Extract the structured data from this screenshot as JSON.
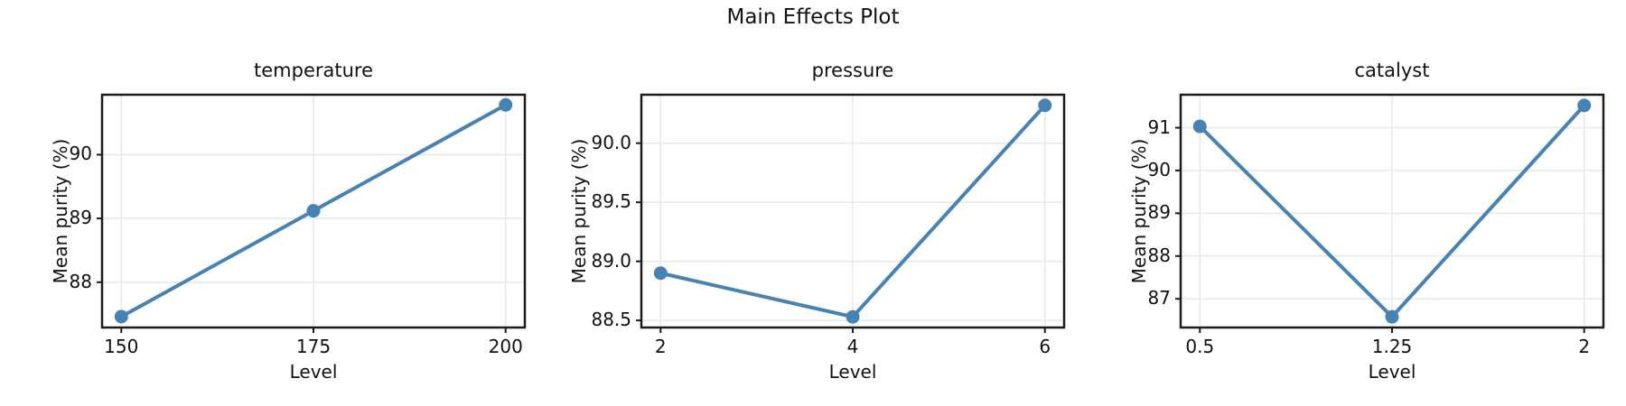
{
  "figure": {
    "title": "Main Effects Plot",
    "background_color": "#ffffff",
    "line_color": "#4682b4",
    "grid_color": "#e8e8e8",
    "spine_color": "#1c1c1c",
    "text_color": "#111111"
  },
  "chart_data": [
    {
      "type": "line",
      "title": "temperature",
      "xlabel": "Level",
      "ylabel": "Mean purity (%)",
      "x": [
        150,
        175,
        200
      ],
      "values": [
        87.46,
        89.12,
        90.78
      ],
      "xtick_labels": [
        "150",
        "175",
        "200"
      ],
      "yticks": [
        88,
        89,
        90
      ],
      "ytick_labels": [
        "88",
        "89",
        "90"
      ],
      "xlim": [
        147.5,
        202.5
      ],
      "ylim": [
        87.29,
        90.94
      ],
      "grid": true,
      "legend": null
    },
    {
      "type": "line",
      "title": "pressure",
      "xlabel": "Level",
      "ylabel": "Mean purity (%)",
      "x": [
        2,
        4,
        6
      ],
      "values": [
        88.9,
        88.53,
        90.32
      ],
      "xtick_labels": [
        "2",
        "4",
        "6"
      ],
      "yticks": [
        88.5,
        89.0,
        89.5,
        90.0
      ],
      "ytick_labels": [
        "88.5",
        "89.0",
        "89.5",
        "90.0"
      ],
      "xlim": [
        1.8,
        6.2
      ],
      "ylim": [
        88.44,
        90.41
      ],
      "grid": true,
      "legend": null
    },
    {
      "type": "line",
      "title": "catalyst",
      "xlabel": "Level",
      "ylabel": "Mean purity (%)",
      "x": [
        0.5,
        1.25,
        2
      ],
      "values": [
        91.03,
        86.58,
        91.52
      ],
      "xtick_labels": [
        "0.5",
        "1.25",
        "2"
      ],
      "yticks": [
        87,
        88,
        89,
        90,
        91
      ],
      "ytick_labels": [
        "87",
        "88",
        "89",
        "90",
        "91"
      ],
      "xlim": [
        0.425,
        2.075
      ],
      "ylim": [
        86.33,
        91.77
      ],
      "grid": true,
      "legend": null
    }
  ]
}
